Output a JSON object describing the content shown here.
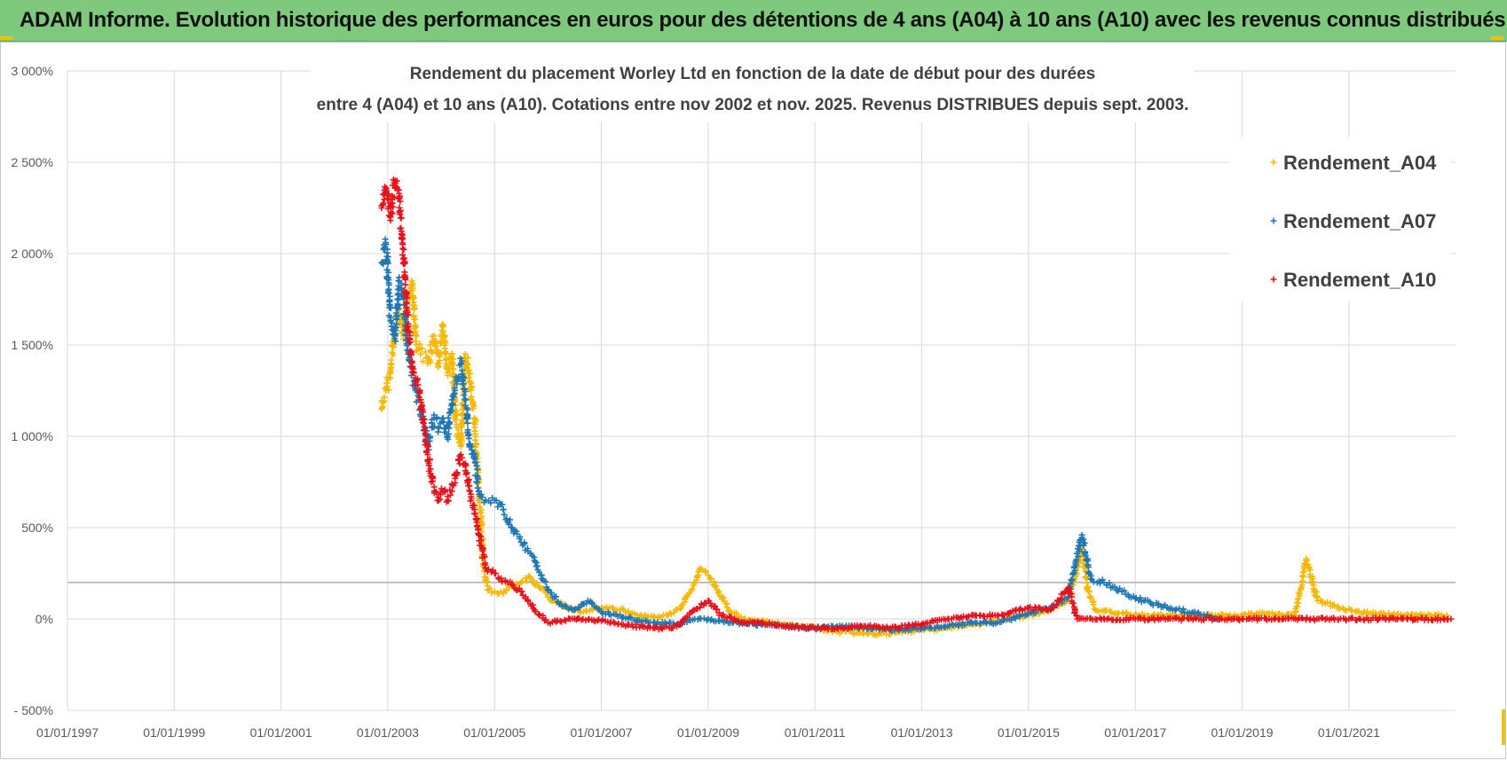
{
  "header": {
    "banner_title": "ADAM Informe. Evolution historique des performances en euros pour des détentions de 4 ans (A04) à 10 ans (A10) avec les revenus connus distribués"
  },
  "chart_data": {
    "type": "scatter",
    "title_line1": "Rendement du placement Worley Ltd en fonction de la date de début pour des durées",
    "title_line2": "entre 4 (A04) et 10 ans (A10).  Cotations entre nov 2002 et nov. 2025. Revenus DISTRIBUES depuis sept. 2003.",
    "xlabel": "",
    "ylabel": "",
    "x_range": [
      "1997-01-01",
      "2022-12-31"
    ],
    "y_range": [
      -500,
      3000
    ],
    "x_ticks": [
      "01/01/1997",
      "01/01/1999",
      "01/01/2001",
      "01/01/2003",
      "01/01/2005",
      "01/01/2007",
      "01/01/2009",
      "01/01/2011",
      "01/01/2013",
      "01/01/2015",
      "01/01/2017",
      "01/01/2019",
      "01/01/2021"
    ],
    "y_ticks": [
      "- 500%",
      "0%",
      "500%",
      "1 000%",
      "1 500%",
      "2 000%",
      "2 500%",
      "3 000%"
    ],
    "y_tick_values": [
      -500,
      0,
      500,
      1000,
      1500,
      2000,
      2500,
      3000
    ],
    "reference_line_value": 200,
    "grid": true,
    "legend_position": "top-right",
    "marker": "+",
    "series": [
      {
        "name": "Rendement_A04",
        "color": "#f5b800",
        "points": [
          [
            "2002-11-20",
            1150
          ],
          [
            "2002-12-20",
            1250
          ],
          [
            "2003-01-20",
            1350
          ],
          [
            "2003-02-20",
            1600
          ],
          [
            "2003-03-20",
            1700
          ],
          [
            "2003-04-20",
            1550
          ],
          [
            "2003-05-20",
            1750
          ],
          [
            "2003-06-15",
            1850
          ],
          [
            "2003-07-15",
            1500
          ],
          [
            "2003-08-15",
            1450
          ],
          [
            "2003-10-01",
            1400
          ],
          [
            "2003-11-15",
            1550
          ],
          [
            "2003-12-15",
            1400
          ],
          [
            "2004-01-15",
            1600
          ],
          [
            "2004-02-15",
            1350
          ],
          [
            "2004-03-15",
            1450
          ],
          [
            "2004-04-15",
            1050
          ],
          [
            "2004-05-15",
            950
          ],
          [
            "2004-06-15",
            1450
          ],
          [
            "2004-07-15",
            1300
          ],
          [
            "2004-08-15",
            1100
          ],
          [
            "2004-09-15",
            700
          ],
          [
            "2004-10-01",
            550
          ],
          [
            "2004-10-15",
            300
          ],
          [
            "2004-11-15",
            160
          ],
          [
            "2005-01-01",
            150
          ],
          [
            "2005-03-01",
            140
          ],
          [
            "2005-05-01",
            200
          ],
          [
            "2005-07-01",
            200
          ],
          [
            "2005-09-01",
            230
          ],
          [
            "2005-11-01",
            180
          ],
          [
            "2006-01-01",
            120
          ],
          [
            "2006-03-01",
            90
          ],
          [
            "2006-06-01",
            60
          ],
          [
            "2006-09-01",
            40
          ],
          [
            "2007-01-01",
            60
          ],
          [
            "2007-06-01",
            50
          ],
          [
            "2007-09-01",
            20
          ],
          [
            "2008-01-01",
            10
          ],
          [
            "2008-04-01",
            20
          ],
          [
            "2008-07-01",
            60
          ],
          [
            "2008-10-01",
            200
          ],
          [
            "2008-11-01",
            270
          ],
          [
            "2009-01-01",
            240
          ],
          [
            "2009-03-01",
            160
          ],
          [
            "2009-06-01",
            40
          ],
          [
            "2009-09-01",
            0
          ],
          [
            "2010-01-01",
            -10
          ],
          [
            "2010-06-01",
            -30
          ],
          [
            "2011-01-01",
            -50
          ],
          [
            "2011-06-01",
            -70
          ],
          [
            "2012-01-01",
            -80
          ],
          [
            "2012-06-01",
            -80
          ],
          [
            "2013-01-01",
            -60
          ],
          [
            "2013-06-01",
            -50
          ],
          [
            "2014-01-01",
            -30
          ],
          [
            "2014-06-01",
            -10
          ],
          [
            "2015-01-01",
            20
          ],
          [
            "2015-06-01",
            50
          ],
          [
            "2015-10-01",
            100
          ],
          [
            "2016-01-01",
            380
          ],
          [
            "2016-02-15",
            150
          ],
          [
            "2016-04-01",
            50
          ],
          [
            "2016-09-01",
            30
          ],
          [
            "2017-06-01",
            20
          ],
          [
            "2018-06-01",
            20
          ],
          [
            "2019-01-01",
            20
          ],
          [
            "2019-06-01",
            30
          ],
          [
            "2020-01-01",
            20
          ],
          [
            "2020-03-15",
            330
          ],
          [
            "2020-06-01",
            100
          ],
          [
            "2020-12-01",
            50
          ],
          [
            "2021-06-01",
            30
          ],
          [
            "2022-06-01",
            20
          ],
          [
            "2022-11-01",
            20
          ]
        ]
      },
      {
        "name": "Rendement_A07",
        "color": "#1f77b4",
        "points": [
          [
            "2002-11-20",
            1950
          ],
          [
            "2002-12-20",
            2050
          ],
          [
            "2003-01-20",
            1650
          ],
          [
            "2003-02-20",
            1550
          ],
          [
            "2003-03-20",
            1850
          ],
          [
            "2003-04-20",
            1750
          ],
          [
            "2003-05-20",
            1450
          ],
          [
            "2003-06-15",
            1350
          ],
          [
            "2003-07-15",
            1250
          ],
          [
            "2003-08-15",
            1150
          ],
          [
            "2003-10-01",
            950
          ],
          [
            "2003-11-15",
            1100
          ],
          [
            "2003-12-15",
            1050
          ],
          [
            "2004-01-15",
            1100
          ],
          [
            "2004-02-15",
            1000
          ],
          [
            "2004-03-15",
            1200
          ],
          [
            "2004-04-15",
            1300
          ],
          [
            "2004-05-15",
            1400
          ],
          [
            "2004-06-15",
            1200
          ],
          [
            "2004-07-15",
            950
          ],
          [
            "2004-08-15",
            900
          ],
          [
            "2004-09-15",
            700
          ],
          [
            "2004-11-01",
            650
          ],
          [
            "2005-01-01",
            650
          ],
          [
            "2005-03-01",
            600
          ],
          [
            "2005-05-01",
            500
          ],
          [
            "2005-07-01",
            420
          ],
          [
            "2005-10-01",
            320
          ],
          [
            "2006-01-01",
            160
          ],
          [
            "2006-04-01",
            80
          ],
          [
            "2006-07-01",
            50
          ],
          [
            "2006-10-01",
            100
          ],
          [
            "2007-01-01",
            40
          ],
          [
            "2007-06-01",
            10
          ],
          [
            "2008-01-01",
            -20
          ],
          [
            "2008-06-01",
            -30
          ],
          [
            "2008-10-01",
            0
          ],
          [
            "2009-01-01",
            0
          ],
          [
            "2009-06-01",
            -20
          ],
          [
            "2010-01-01",
            -30
          ],
          [
            "2010-06-01",
            -40
          ],
          [
            "2011-01-01",
            -50
          ],
          [
            "2011-06-01",
            -40
          ],
          [
            "2012-01-01",
            -50
          ],
          [
            "2012-06-01",
            -60
          ],
          [
            "2013-01-01",
            -50
          ],
          [
            "2013-06-01",
            -40
          ],
          [
            "2014-01-01",
            -20
          ],
          [
            "2014-06-01",
            -20
          ],
          [
            "2015-01-01",
            30
          ],
          [
            "2015-06-01",
            60
          ],
          [
            "2015-10-01",
            120
          ],
          [
            "2016-01-01",
            460
          ],
          [
            "2016-03-01",
            220
          ],
          [
            "2016-06-01",
            200
          ],
          [
            "2016-10-01",
            150
          ],
          [
            "2017-03-01",
            100
          ],
          [
            "2017-09-01",
            60
          ],
          [
            "2018-03-01",
            30
          ],
          [
            "2018-08-01",
            0
          ]
        ]
      },
      {
        "name": "Rendement_A10",
        "color": "#e8111a",
        "points": [
          [
            "2002-11-20",
            2250
          ],
          [
            "2002-12-20",
            2350
          ],
          [
            "2003-01-20",
            2200
          ],
          [
            "2003-02-20",
            2400
          ],
          [
            "2003-03-20",
            2300
          ],
          [
            "2003-04-20",
            1950
          ],
          [
            "2003-05-20",
            1600
          ],
          [
            "2003-06-15",
            1400
          ],
          [
            "2003-07-15",
            1300
          ],
          [
            "2003-08-15",
            1200
          ],
          [
            "2003-10-01",
            900
          ],
          [
            "2003-11-15",
            700
          ],
          [
            "2003-12-15",
            650
          ],
          [
            "2004-01-15",
            700
          ],
          [
            "2004-02-15",
            650
          ],
          [
            "2004-03-15",
            700
          ],
          [
            "2004-04-15",
            800
          ],
          [
            "2004-05-15",
            900
          ],
          [
            "2004-06-15",
            850
          ],
          [
            "2004-07-15",
            700
          ],
          [
            "2004-08-15",
            600
          ],
          [
            "2004-10-01",
            400
          ],
          [
            "2004-11-01",
            280
          ],
          [
            "2005-01-01",
            250
          ],
          [
            "2005-04-01",
            200
          ],
          [
            "2005-07-01",
            150
          ],
          [
            "2005-10-01",
            50
          ],
          [
            "2006-01-01",
            -20
          ],
          [
            "2006-06-01",
            0
          ],
          [
            "2007-01-01",
            -10
          ],
          [
            "2007-06-01",
            -30
          ],
          [
            "2008-01-01",
            -50
          ],
          [
            "2008-06-01",
            -40
          ],
          [
            "2008-10-01",
            50
          ],
          [
            "2009-01-01",
            100
          ],
          [
            "2009-04-01",
            20
          ],
          [
            "2009-09-01",
            -20
          ],
          [
            "2010-01-01",
            -20
          ],
          [
            "2010-06-01",
            -40
          ],
          [
            "2011-01-01",
            -50
          ],
          [
            "2011-06-01",
            -50
          ],
          [
            "2012-01-01",
            -40
          ],
          [
            "2012-06-01",
            -50
          ],
          [
            "2013-01-01",
            -30
          ],
          [
            "2013-06-01",
            0
          ],
          [
            "2014-01-01",
            20
          ],
          [
            "2014-06-01",
            20
          ],
          [
            "2015-01-01",
            60
          ],
          [
            "2015-06-01",
            50
          ],
          [
            "2015-10-01",
            170
          ],
          [
            "2015-12-01",
            0
          ],
          [
            "2017-01-01",
            0
          ],
          [
            "2018-01-01",
            0
          ],
          [
            "2019-01-01",
            0
          ],
          [
            "2020-01-01",
            0
          ],
          [
            "2021-01-01",
            0
          ],
          [
            "2022-01-01",
            0
          ],
          [
            "2022-11-30",
            0
          ]
        ]
      }
    ]
  }
}
